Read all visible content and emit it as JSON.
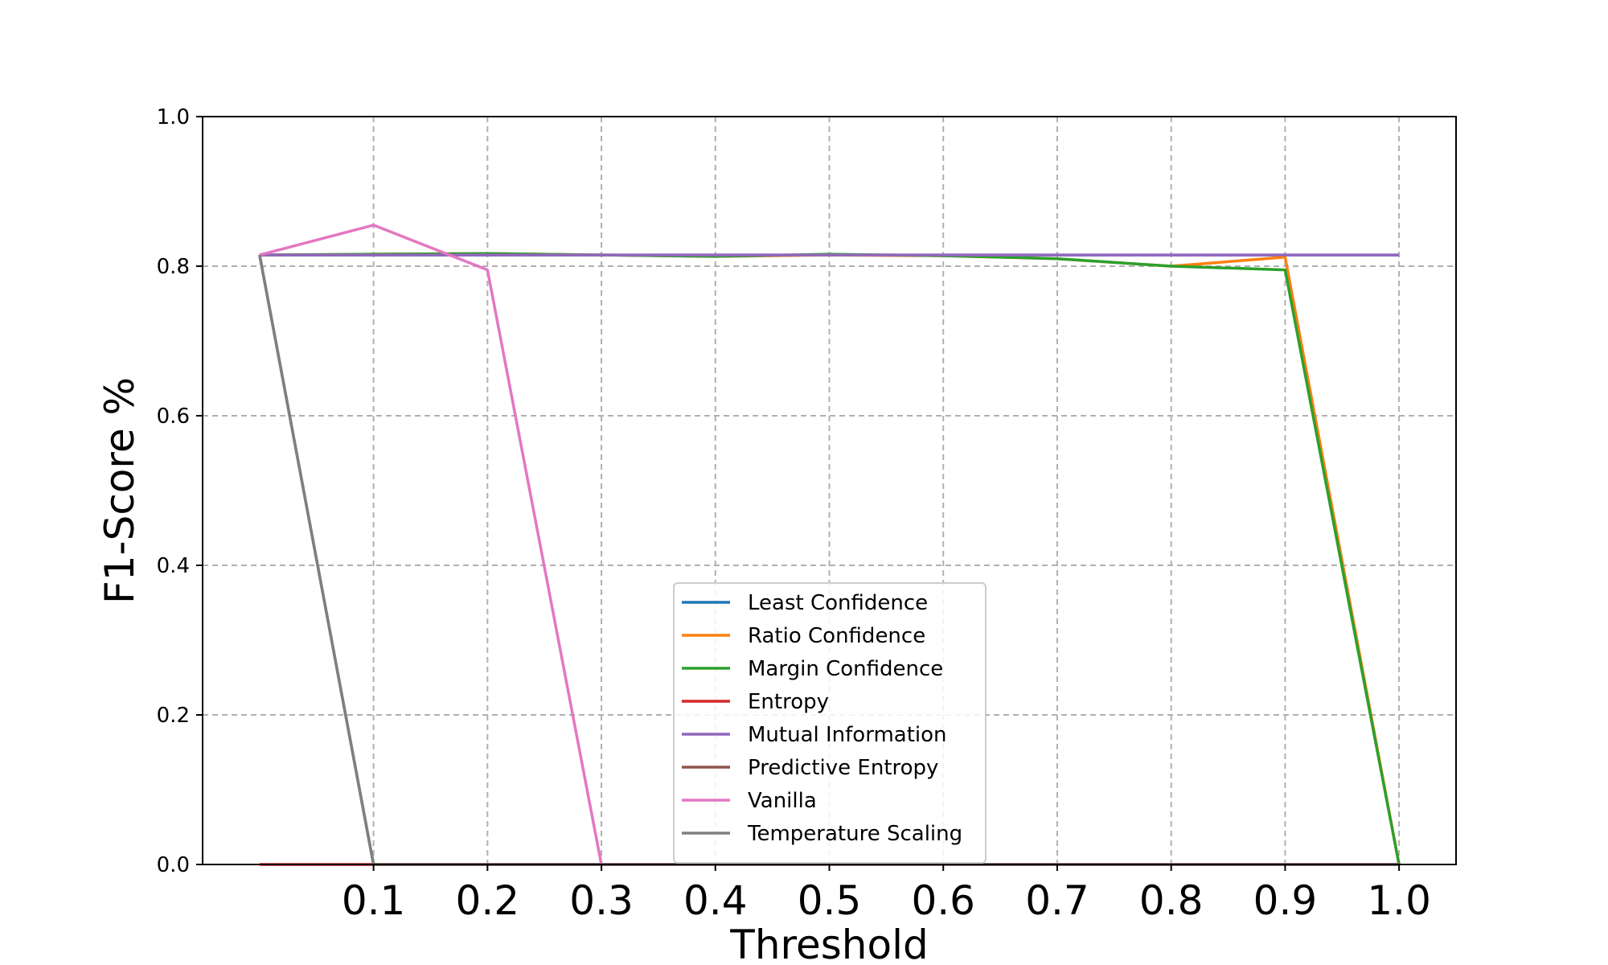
{
  "chart_data": {
    "type": "line",
    "xlabel": "Threshold",
    "ylabel": "F1-Score %",
    "xlim": [
      -0.05,
      1.05
    ],
    "ylim": [
      0.0,
      1.0
    ],
    "x_ticks": [
      "0.1",
      "0.2",
      "0.3",
      "0.4",
      "0.5",
      "0.6",
      "0.7",
      "0.8",
      "0.9",
      "1.0"
    ],
    "y_ticks": [
      "0.0",
      "0.2",
      "0.4",
      "0.6",
      "0.8",
      "1.0"
    ],
    "grid": true,
    "legend_position": "lower-center",
    "series": [
      {
        "name": "Least Confidence",
        "color": "#1f77b4",
        "x": [
          0.0,
          0.1,
          0.2,
          0.3,
          0.4,
          0.5,
          0.6,
          0.7,
          0.8,
          0.9,
          1.0
        ],
        "y": [
          0.815,
          0.815,
          0.815,
          0.815,
          0.815,
          0.815,
          0.815,
          0.815,
          0.815,
          0.815,
          0.815
        ]
      },
      {
        "name": "Ratio Confidence",
        "color": "#ff7f0e",
        "x": [
          0.0,
          0.1,
          0.2,
          0.3,
          0.4,
          0.5,
          0.6,
          0.7,
          0.8,
          0.9,
          1.0
        ],
        "y": [
          0.815,
          0.816,
          0.817,
          0.815,
          0.813,
          0.815,
          0.814,
          0.81,
          0.8,
          0.812,
          0.0
        ]
      },
      {
        "name": "Margin Confidence",
        "color": "#2ca02c",
        "x": [
          0.0,
          0.1,
          0.2,
          0.3,
          0.4,
          0.5,
          0.6,
          0.7,
          0.8,
          0.9,
          1.0
        ],
        "y": [
          0.815,
          0.816,
          0.817,
          0.815,
          0.813,
          0.816,
          0.814,
          0.81,
          0.8,
          0.795,
          0.0
        ]
      },
      {
        "name": "Entropy",
        "color": "#d62728",
        "x": [
          0.0,
          0.1,
          0.2,
          0.3,
          0.4,
          0.5,
          0.6,
          0.7,
          0.8,
          0.9,
          1.0
        ],
        "y": [
          0.0,
          0.0,
          0.0,
          0.0,
          0.0,
          0.0,
          0.0,
          0.0,
          0.0,
          0.0,
          0.0
        ]
      },
      {
        "name": "Mutual Information",
        "color": "#9467bd",
        "x": [
          0.0,
          0.1,
          0.2,
          0.3,
          0.4,
          0.5,
          0.6,
          0.7,
          0.8,
          0.9,
          1.0
        ],
        "y": [
          0.815,
          0.815,
          0.815,
          0.815,
          0.815,
          0.815,
          0.815,
          0.815,
          0.815,
          0.815,
          0.815
        ]
      },
      {
        "name": "Predictive Entropy",
        "color": "#8c564b",
        "x": [
          0.0,
          0.1,
          0.2,
          0.3,
          0.4,
          0.5,
          0.6,
          0.7,
          0.8,
          0.9,
          1.0
        ],
        "y": [
          0.815,
          0.0,
          0.0,
          0.0,
          0.0,
          0.0,
          0.0,
          0.0,
          0.0,
          0.0,
          0.0
        ]
      },
      {
        "name": "Vanilla",
        "color": "#e377c2",
        "x": [
          0.0,
          0.1,
          0.2,
          0.3,
          0.4,
          0.5,
          0.6,
          0.7,
          0.8,
          0.9,
          1.0
        ],
        "y": [
          0.815,
          0.855,
          0.795,
          0.0,
          0.0,
          0.0,
          0.0,
          0.0,
          0.0,
          0.0,
          0.0
        ]
      },
      {
        "name": "Temperature Scaling",
        "color": "#7f7f7f",
        "x": [
          0.0,
          0.1,
          0.2,
          0.3,
          0.4,
          0.5,
          0.6,
          0.7,
          0.8,
          0.9,
          1.0
        ],
        "y": [
          0.815,
          0.0,
          0.0,
          0.0,
          0.0,
          0.0,
          0.0,
          0.0,
          0.0,
          0.0,
          0.0
        ]
      }
    ]
  }
}
